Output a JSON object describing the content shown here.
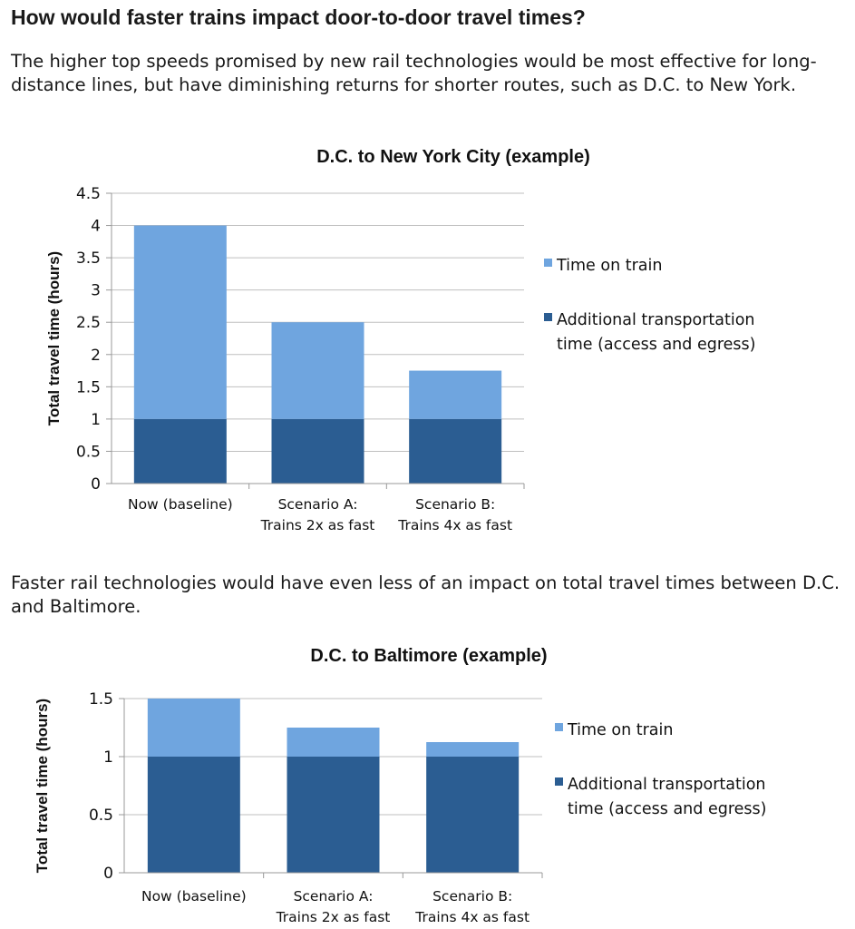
{
  "heading": "How would faster trains impact door-to-door travel times?",
  "intro_1": "The higher top speeds promised by new rail technologies would be most effective for long-distance lines, but have diminishing returns for shorter routes, such as D.C. to New York.",
  "intro_2": "Faster rail technologies would have even less of an impact on total travel times between D.C. and Baltimore.",
  "colors": {
    "time_on_train": "#6fa5df",
    "additional_time": "#2b5d92",
    "grid": "#bfbfbf",
    "axis": "#999999"
  },
  "chart_data": [
    {
      "type": "bar",
      "stacked": true,
      "title": "D.C. to New York City (example)",
      "xlabel": "",
      "ylabel": "Total travel time (hours)",
      "ylim": [
        0,
        4.5
      ],
      "yticks": [
        "0",
        "0.5",
        "1",
        "1.5",
        "2",
        "2.5",
        "3",
        "3.5",
        "4",
        "4.5"
      ],
      "categories": [
        [
          "Now (baseline)"
        ],
        [
          "Scenario A:",
          "Trains 2x as fast"
        ],
        [
          "Scenario B:",
          "Trains 4x as fast"
        ]
      ],
      "series": [
        {
          "name": "Additional transportation time (access and egress)",
          "legend_lines": [
            "Additional transportation",
            "time (access and egress)"
          ],
          "color": "#2b5d92",
          "values": [
            1,
            1,
            1
          ]
        },
        {
          "name": "Time on train",
          "legend_lines": [
            "Time on train"
          ],
          "color": "#6fa5df",
          "values": [
            3,
            1.5,
            0.75
          ]
        }
      ],
      "legend": "right",
      "grid": true
    },
    {
      "type": "bar",
      "stacked": true,
      "title": "D.C. to Baltimore (example)",
      "xlabel": "",
      "ylabel": "Total travel time (hours)",
      "ylim": [
        0,
        1.5
      ],
      "yticks": [
        "0",
        "0.5",
        "1",
        "1.5"
      ],
      "categories": [
        [
          "Now (baseline)"
        ],
        [
          "Scenario A:",
          "Trains 2x as fast"
        ],
        [
          "Scenario B:",
          "Trains 4x as fast"
        ]
      ],
      "series": [
        {
          "name": "Additional transportation time (access and egress)",
          "legend_lines": [
            "Additional transportation",
            "time (access and egress)"
          ],
          "color": "#2b5d92",
          "values": [
            1,
            1,
            1
          ]
        },
        {
          "name": "Time on train",
          "legend_lines": [
            "Time on train"
          ],
          "color": "#6fa5df",
          "values": [
            0.5,
            0.25,
            0.125
          ]
        }
      ],
      "legend": "right",
      "grid": true
    }
  ]
}
